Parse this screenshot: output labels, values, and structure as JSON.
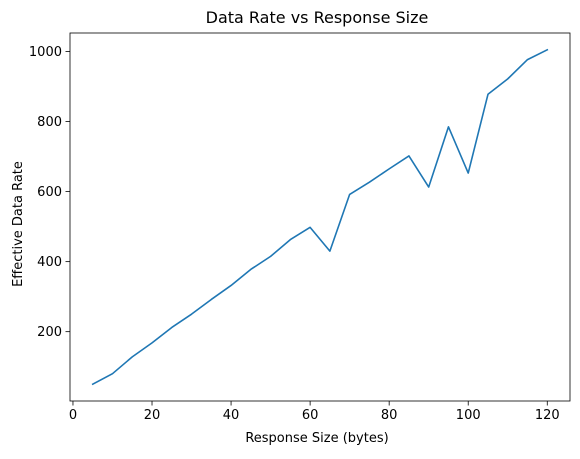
{
  "chart_data": {
    "type": "line",
    "title": "Data Rate vs Response Size",
    "xlabel": "Response Size (bytes)",
    "ylabel": "Effective Data Rate",
    "xlim": [
      -0.75,
      125.75
    ],
    "ylim": [
      2,
      1053
    ],
    "xticks": [
      0,
      20,
      40,
      60,
      80,
      100,
      120
    ],
    "yticks": [
      200,
      400,
      600,
      800,
      1000
    ],
    "grid": false,
    "series": [
      {
        "color": "#1f77b4",
        "x": [
          5,
          10,
          15,
          20,
          25,
          30,
          35,
          40,
          45,
          50,
          55,
          60,
          65,
          70,
          75,
          80,
          85,
          90,
          95,
          100,
          105,
          110,
          115,
          120
        ],
        "y": [
          50,
          80,
          128,
          168,
          212,
          250,
          292,
          332,
          378,
          415,
          463,
          498,
          430,
          592,
          627,
          665,
          702,
          613,
          785,
          653,
          878,
          922,
          977,
          1005
        ]
      }
    ]
  }
}
